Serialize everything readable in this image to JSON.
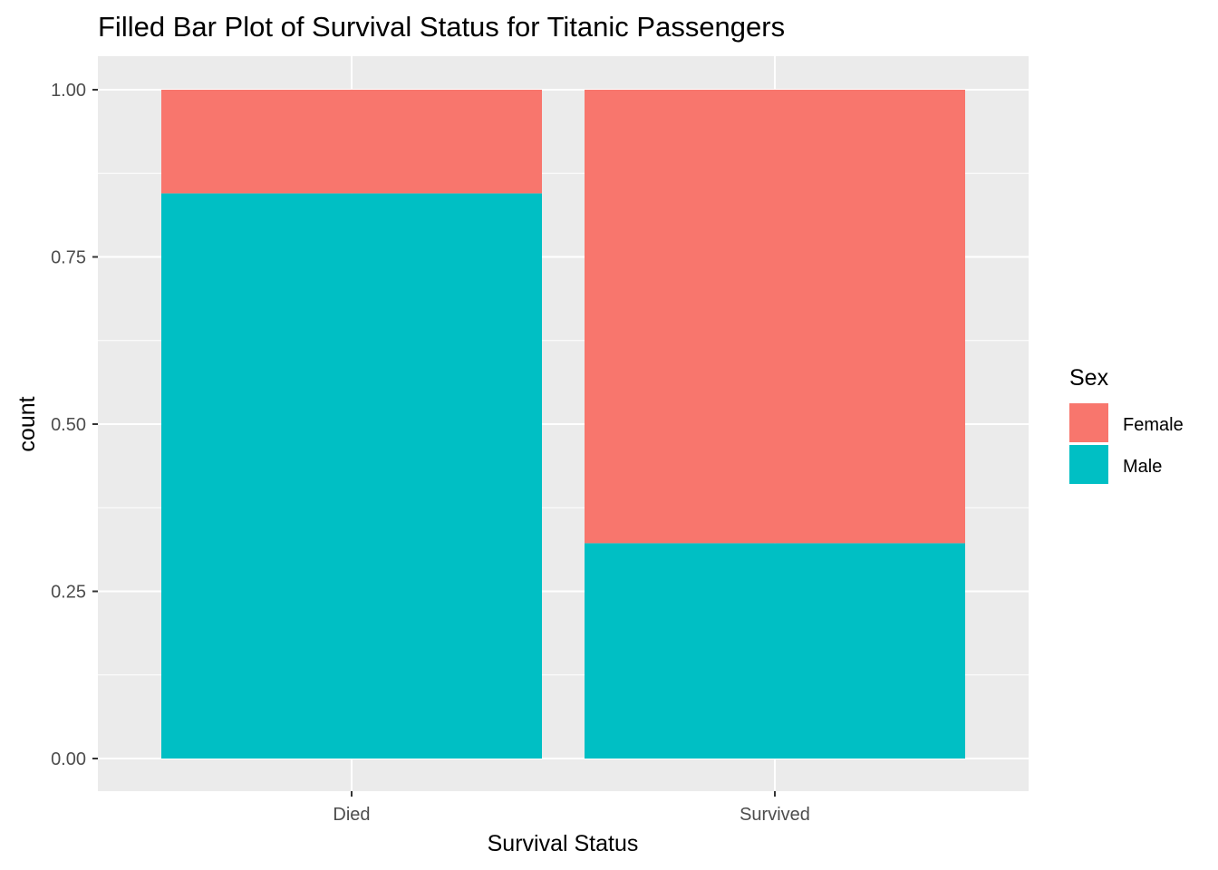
{
  "chart_data": {
    "type": "bar",
    "stacking": "fill",
    "title": "Filled Bar Plot of Survival Status for Titanic Passengers",
    "xlabel": "Survival Status",
    "ylabel": "count",
    "categories": [
      "Died",
      "Survived"
    ],
    "ylim": [
      0,
      1
    ],
    "yticks": [
      0.0,
      0.25,
      0.5,
      0.75,
      1.0
    ],
    "ytick_labels": [
      "0.00",
      "0.25",
      "0.50",
      "0.75",
      "1.00"
    ],
    "grid": true,
    "legend": {
      "title": "Sex",
      "position": "right"
    },
    "series": [
      {
        "name": "Female",
        "color": "#F8766D",
        "values": [
          0.155,
          0.678
        ]
      },
      {
        "name": "Male",
        "color": "#00BFC4",
        "values": [
          0.845,
          0.322
        ]
      }
    ]
  }
}
